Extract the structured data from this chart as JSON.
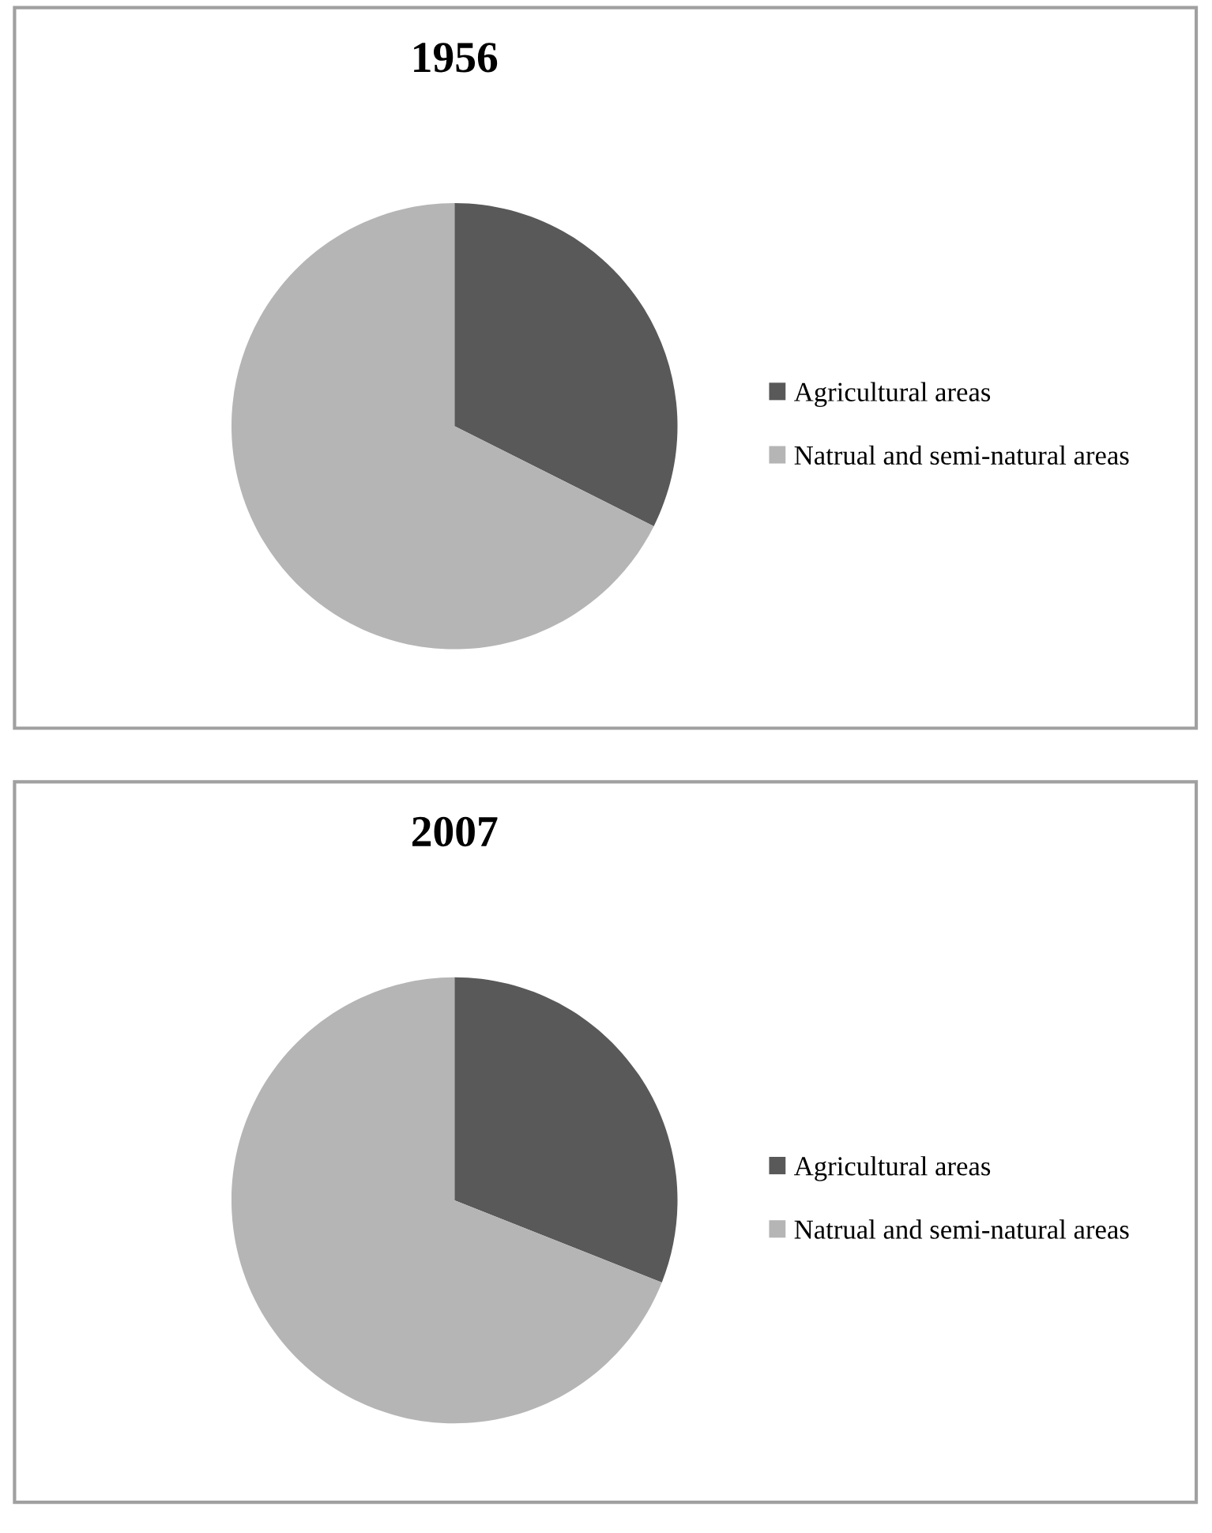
{
  "chart_data": [
    {
      "type": "pie",
      "title": "1956",
      "categories": [
        "Agricultural areas",
        "Natrual and semi-natural areas"
      ],
      "values": [
        32.4,
        67.6
      ],
      "colors": [
        "#595959",
        "#b5b5b5"
      ],
      "legend": "right"
    },
    {
      "type": "pie",
      "title": "2007",
      "categories": [
        "Agricultural areas",
        "Natrual and semi-natural areas"
      ],
      "values": [
        31,
        69
      ],
      "colors": [
        "#595959",
        "#b5b5b5"
      ],
      "legend": "right"
    }
  ]
}
